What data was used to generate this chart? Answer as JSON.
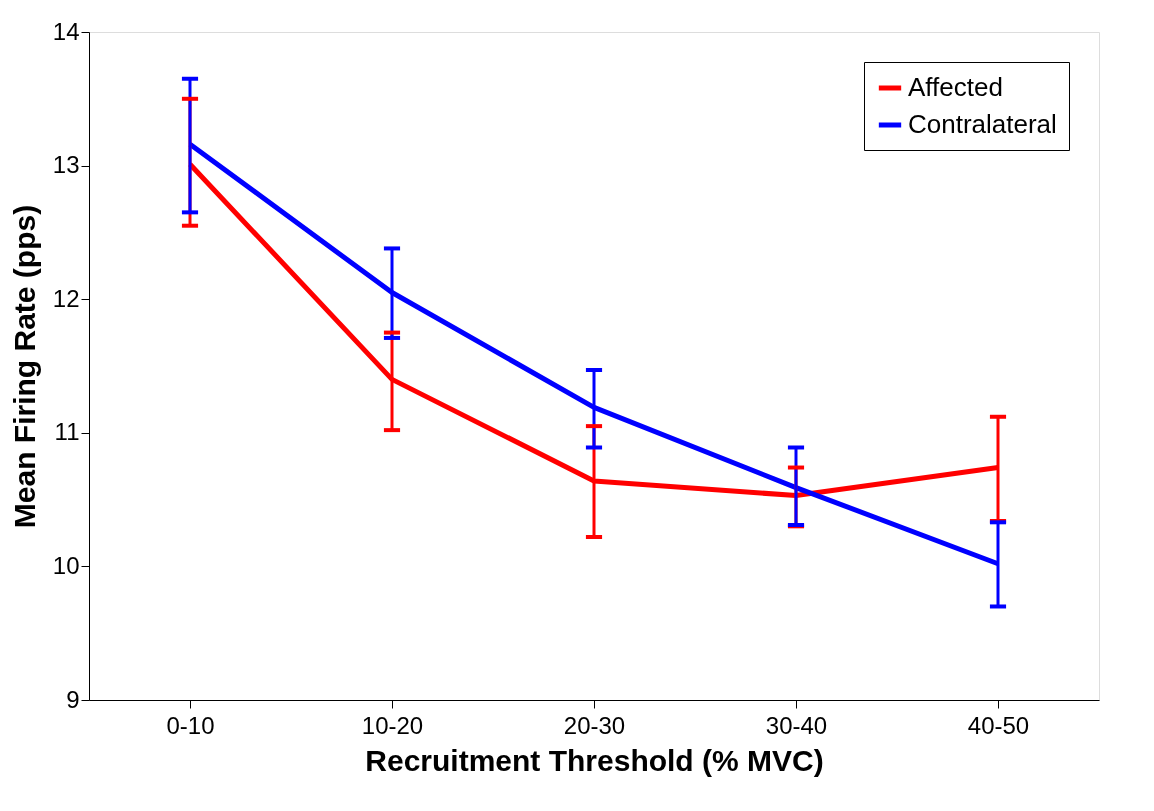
{
  "chart_data": {
    "type": "line",
    "xlabel": "Recruitment Threshold (% MVC)",
    "ylabel": "Mean Firing Rate (pps)",
    "categories": [
      "0-10",
      "10-20",
      "20-30",
      "30-40",
      "40-50"
    ],
    "series": [
      {
        "name": "Affected",
        "color": "#ff0000",
        "values": [
          13.01,
          11.4,
          10.64,
          10.53,
          10.74
        ],
        "errors": [
          [
            12.55,
            13.5
          ],
          [
            11.02,
            11.75
          ],
          [
            10.22,
            11.05
          ],
          [
            10.3,
            10.74
          ],
          [
            10.34,
            11.12
          ]
        ]
      },
      {
        "name": "Contralateral",
        "color": "#0000ff",
        "values": [
          13.16,
          12.05,
          11.19,
          10.59,
          10.02
        ],
        "errors": [
          [
            12.65,
            13.65
          ],
          [
            11.71,
            12.38
          ],
          [
            10.89,
            11.47
          ],
          [
            10.31,
            10.89
          ],
          [
            9.7,
            10.33
          ]
        ]
      }
    ],
    "ylim": [
      9,
      14
    ],
    "yticks": [
      9,
      10,
      11,
      12,
      13,
      14
    ],
    "grid": false,
    "legend": "top right",
    "marker": "none",
    "line_style": "solid"
  }
}
